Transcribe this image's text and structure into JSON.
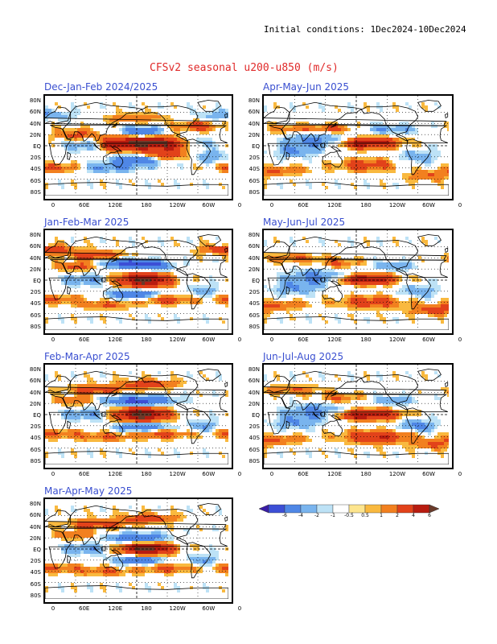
{
  "header": {
    "initial_conditions": "Initial conditions: 1Dec2024-10Dec2024",
    "title": "CFSv2 seasonal u200-u850 (m/s)"
  },
  "axes": {
    "lat_labels": [
      "80N",
      "60N",
      "40N",
      "20N",
      "EQ",
      "20S",
      "40S",
      "60S",
      "80S"
    ],
    "lon_labels": [
      "0",
      "60E",
      "120E",
      "180",
      "120W",
      "60W",
      "0"
    ]
  },
  "panels": [
    {
      "id": "djf",
      "title": "Dec-Jan-Feb 2024/2025"
    },
    {
      "id": "amj",
      "title": "Apr-May-Jun 2025"
    },
    {
      "id": "jfm",
      "title": "Jan-Feb-Mar 2025"
    },
    {
      "id": "mjj",
      "title": "May-Jun-Jul 2025"
    },
    {
      "id": "fma",
      "title": "Feb-Mar-Apr 2025"
    },
    {
      "id": "jja",
      "title": "Jun-Jul-Aug 2025"
    },
    {
      "id": "mam",
      "title": "Mar-Apr-May 2025"
    }
  ],
  "colorbar": {
    "labels": [
      "-6",
      "-4",
      "-2",
      "-1",
      "-0.5",
      "0.5",
      "1",
      "2",
      "4",
      "6"
    ],
    "colors": [
      "#3a1ca8",
      "#3c4fd6",
      "#4f87e6",
      "#79b4ee",
      "#bde2f6",
      "#ffffff",
      "#fde58e",
      "#f9b93f",
      "#f2801f",
      "#e2421a",
      "#b81c10",
      "#6a3a2a"
    ]
  }
}
